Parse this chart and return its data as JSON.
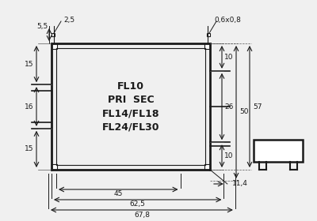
{
  "bg_color": "#f0f0f0",
  "line_color": "#1a1a1a",
  "text_color": "#1a1a1a",
  "title_lines": [
    "FL10",
    "PRI  SEC",
    "FL14/FL18",
    "FL24/FL30"
  ],
  "dim_55": "5,5",
  "dim_25": "2,5",
  "dim_06x08": "0,6x0,8",
  "dim_15a": "15",
  "dim_16": "16",
  "dim_15b": "15",
  "dim_10a": "10",
  "dim_50": "50",
  "dim_26": "26",
  "dim_57": "57",
  "dim_10b": "10",
  "dim_114": "11,4",
  "dim_45": "45",
  "dim_625": "62,5",
  "dim_678": "67,8"
}
